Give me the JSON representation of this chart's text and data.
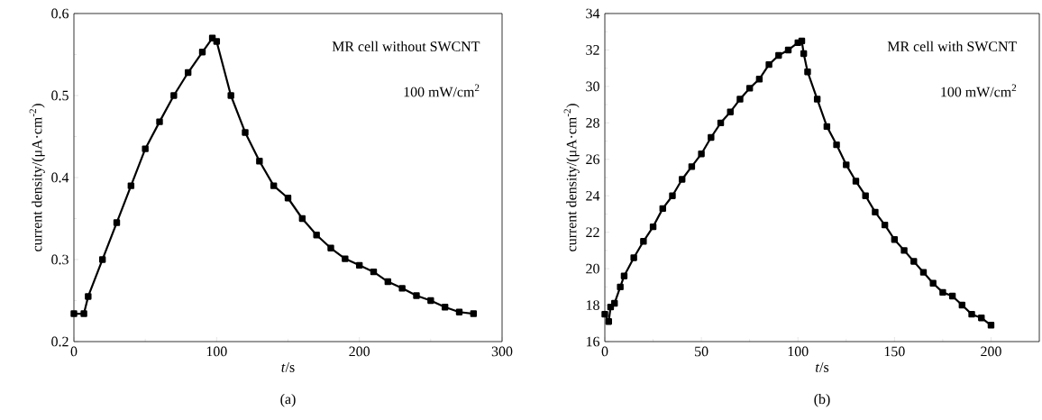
{
  "chart_data": [
    {
      "type": "line",
      "xlabel": "*t*/s",
      "ylabel": "current density/(μA·cm$^{-2}$)",
      "xlim": [
        0,
        300
      ],
      "xticks": [
        0,
        100,
        200,
        300
      ],
      "ylim": [
        0.2,
        0.6
      ],
      "yticks": [
        0.2,
        0.3,
        0.4,
        0.5,
        0.6
      ],
      "marker": "square",
      "line_style": "solid",
      "grid": false,
      "annotations": [
        "MR cell without SWCNT",
        "100 mW/cm$^{2}$",
        "(a)"
      ],
      "series": [
        {
          "color": "#000000",
          "x": [
            0,
            7,
            10,
            20,
            30,
            40,
            50,
            60,
            70,
            80,
            90,
            97,
            100,
            110,
            120,
            130,
            140,
            150,
            160,
            170,
            180,
            190,
            200,
            210,
            220,
            230,
            240,
            250,
            260,
            270,
            280
          ],
          "values": [
            0.234,
            0.234,
            0.255,
            0.3,
            0.345,
            0.39,
            0.435,
            0.468,
            0.5,
            0.528,
            0.553,
            0.57,
            0.566,
            0.5,
            0.455,
            0.42,
            0.39,
            0.375,
            0.35,
            0.33,
            0.314,
            0.301,
            0.293,
            0.285,
            0.273,
            0.265,
            0.256,
            0.25,
            0.242,
            0.236,
            0.234
          ]
        }
      ]
    },
    {
      "type": "line",
      "xlabel": "*t*/s",
      "ylabel": "current density/(μA·cm$^{-2}$)",
      "xlim": [
        0,
        225
      ],
      "xticks": [
        0,
        50,
        100,
        150,
        200
      ],
      "ylim": [
        16,
        34
      ],
      "yticks": [
        16,
        18,
        20,
        22,
        24,
        26,
        28,
        30,
        32,
        34
      ],
      "marker": "square",
      "line_style": "solid",
      "grid": false,
      "annotations": [
        "MR cell with SWCNT",
        "100 mW/cm$^{2}$",
        "(b)"
      ],
      "series": [
        {
          "color": "#000000",
          "x": [
            0,
            2,
            3,
            5,
            8,
            10,
            15,
            20,
            25,
            30,
            35,
            40,
            45,
            50,
            55,
            60,
            65,
            70,
            75,
            80,
            85,
            90,
            95,
            100,
            102,
            103,
            105,
            110,
            115,
            120,
            125,
            130,
            135,
            140,
            145,
            150,
            155,
            160,
            165,
            170,
            175,
            180,
            185,
            190,
            195,
            200
          ],
          "values": [
            17.5,
            17.1,
            17.9,
            18.1,
            19,
            19.6,
            20.6,
            21.5,
            22.3,
            23.3,
            24,
            24.9,
            25.6,
            26.3,
            27.2,
            28,
            28.6,
            29.3,
            29.9,
            30.4,
            31.2,
            31.7,
            32,
            32.4,
            32.5,
            31.8,
            30.8,
            29.3,
            27.8,
            26.8,
            25.7,
            24.8,
            24,
            23.1,
            22.4,
            21.6,
            21,
            20.4,
            19.8,
            19.2,
            18.7,
            18.5,
            18,
            17.5,
            17.3,
            16.9
          ]
        }
      ]
    }
  ]
}
